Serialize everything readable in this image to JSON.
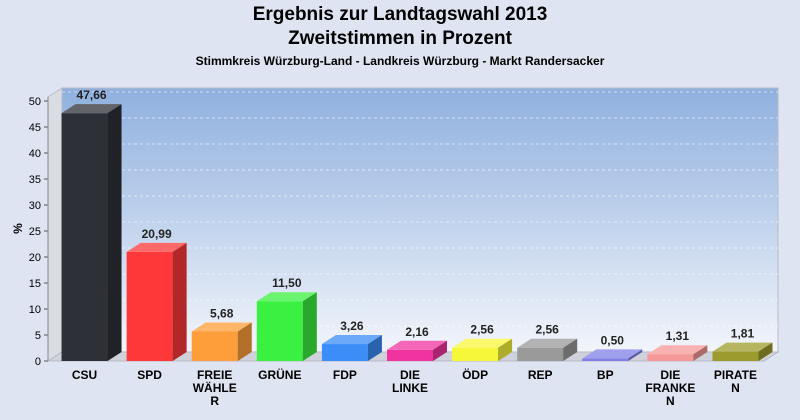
{
  "chart_data": {
    "type": "bar",
    "title": "Ergebnis zur Landtagswahl 2013",
    "subtitle": "Zweitstimmen in Prozent",
    "subtitle2": "Stimmkreis Würzburg-Land - Landkreis Würzburg - Markt Randersacker",
    "ylabel": "%",
    "ylim": [
      0,
      50
    ],
    "yticks": [
      "0",
      "5",
      "10",
      "15",
      "20",
      "25",
      "30",
      "35",
      "40",
      "45",
      "50"
    ],
    "grid": true,
    "categories": [
      [
        "CSU"
      ],
      [
        "SPD"
      ],
      [
        "FREIE",
        "WÄHLE",
        "R"
      ],
      [
        "GRÜNE"
      ],
      [
        "FDP"
      ],
      [
        "DIE",
        "LINKE"
      ],
      [
        "ÖDP"
      ],
      [
        "REP"
      ],
      [
        "BP"
      ],
      [
        "DIE",
        "FRANKE",
        "N"
      ],
      [
        "PIRATE",
        "N"
      ]
    ],
    "values": [
      47.66,
      20.99,
      5.68,
      11.5,
      3.26,
      2.16,
      2.56,
      2.56,
      0.5,
      1.31,
      1.81
    ],
    "value_labels": [
      "47,66",
      "20,99",
      "5,68",
      "11,50",
      "3,26",
      "2,16",
      "2,56",
      "2,56",
      "0,50",
      "1,31",
      "1,81"
    ],
    "colors": [
      "#2e3038",
      "#fe3838",
      "#fe9e3a",
      "#3af040",
      "#3b8ef7",
      "#f0339f",
      "#f7f73a",
      "#9a9a9a",
      "#8080e8",
      "#f59898",
      "#9c9c2e"
    ]
  }
}
